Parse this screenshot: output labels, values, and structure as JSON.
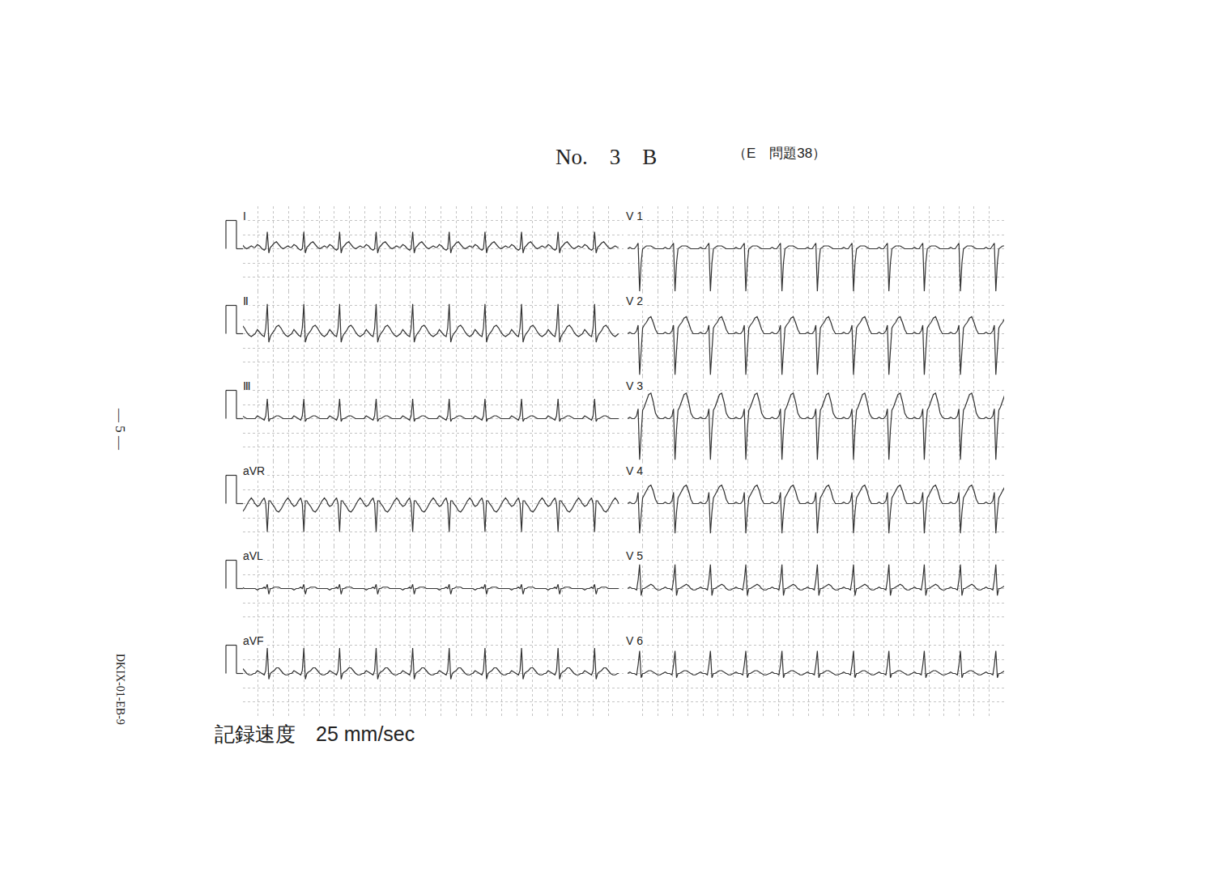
{
  "page": {
    "header": "No.　3　B",
    "exam_ref": "（E　問題38）",
    "page_number": "— 5 —",
    "code": "DKIX-01-EB-9",
    "recording_speed": "記録速度　25 mm/sec"
  },
  "chart_data": {
    "type": "line",
    "color": "#333333",
    "grid": true,
    "tick_labels": false,
    "xlim": [
      0,
      5
    ],
    "xticks": [
      0,
      0.2,
      0.4,
      0.6,
      0.8,
      1,
      1.2,
      1.4,
      1.6,
      1.8,
      2,
      2.2,
      2.4,
      2.6,
      2.8,
      3,
      3.2,
      3.4,
      3.6,
      3.8,
      4,
      4.2,
      4.4,
      4.6,
      4.8,
      5
    ],
    "ylim": [
      -1.5,
      1.5
    ],
    "yticks": [
      -1.5,
      -1,
      -0.5,
      0,
      0.5,
      1,
      1.5
    ],
    "beat_template_t": [
      -0.16,
      -0.13,
      -0.1,
      -0.07,
      -0.04,
      -0.02,
      0,
      0.02,
      0.04,
      0.06,
      0.09,
      0.12,
      0.15,
      0.18,
      0.21,
      0.24,
      0.27,
      0.3,
      0.315
    ],
    "columns": [
      {
        "calibration_mV": 1,
        "beat_times": [
          -0.16,
          0.32,
          0.8,
          1.27,
          1.75,
          2.23,
          2.71,
          3.18,
          3.66,
          4.14,
          4.62
        ],
        "leads": [
          {
            "name": "I",
            "values": [
              0.05,
              0.15,
              0.1,
              0,
              -0.05,
              0,
              0.6,
              -0.15,
              0.05,
              0.1,
              0.2,
              0.25,
              0.15,
              0.05,
              0,
              0.05,
              0.1,
              0.05,
              0.05
            ]
          },
          {
            "name": "Ⅱ",
            "values": [
              0,
              0.15,
              0.05,
              -0.05,
              -0.1,
              0.2,
              1.05,
              -0.3,
              -0.1,
              0,
              0.1,
              0.25,
              0.3,
              0.2,
              0.05,
              -0.05,
              -0.1,
              -0.05,
              0
            ]
          },
          {
            "name": "Ⅲ",
            "values": [
              0,
              0.1,
              0.05,
              0,
              -0.05,
              0.1,
              0.7,
              -0.1,
              0,
              0,
              0.05,
              0.1,
              0.1,
              0.05,
              0,
              0,
              0,
              0,
              0
            ]
          },
          {
            "name": "aVR",
            "values": [
              0,
              -0.1,
              -0.05,
              0.1,
              0.2,
              0,
              -1.0,
              0.1,
              0.1,
              0,
              -0.1,
              -0.25,
              -0.3,
              -0.2,
              -0.05,
              0.1,
              0.2,
              0.1,
              0
            ]
          },
          {
            "name": "aVL",
            "values": [
              0,
              -0.05,
              0,
              0,
              0.05,
              0,
              0.15,
              -0.2,
              0,
              0,
              0.05,
              0.05,
              0.05,
              0,
              0,
              0,
              0,
              0,
              0
            ]
          },
          {
            "name": "aVF",
            "values": [
              0,
              0.1,
              0.05,
              0,
              -0.05,
              0.1,
              0.9,
              -0.2,
              0,
              0.05,
              0.1,
              0.2,
              0.2,
              0.1,
              0,
              -0.05,
              -0.05,
              0,
              0
            ]
          }
        ]
      },
      {
        "beat_times": [
          0.16,
          0.63,
          1.1,
          1.57,
          2.05,
          2.52,
          3.0,
          3.47,
          3.94,
          4.42,
          4.89
        ],
        "leads": [
          {
            "name": "V 1",
            "values": [
              0,
              0.05,
              0,
              0,
              0.1,
              0.2,
              -1.5,
              -0.5,
              0,
              0.05,
              0.1,
              0.1,
              0.1,
              0.05,
              0,
              0,
              0,
              0,
              0
            ]
          },
          {
            "name": "V 2",
            "values": [
              0,
              0.05,
              0,
              0,
              0.1,
              0.3,
              -1.45,
              -0.6,
              0.2,
              0.3,
              0.4,
              0.55,
              0.6,
              0.4,
              0.15,
              0,
              0,
              0,
              0
            ]
          },
          {
            "name": "V 3",
            "values": [
              0,
              0.05,
              0,
              0,
              0.1,
              0.35,
              -1.45,
              -0.4,
              0.3,
              0.4,
              0.6,
              0.85,
              0.9,
              0.6,
              0.2,
              0.05,
              0,
              0,
              0
            ]
          },
          {
            "name": "V 4",
            "values": [
              0,
              0.05,
              0,
              0,
              0.1,
              0.4,
              -1.05,
              -0.3,
              0.2,
              0.3,
              0.45,
              0.6,
              0.65,
              0.45,
              0.15,
              0,
              0,
              0,
              0
            ]
          },
          {
            "name": "V 5",
            "values": [
              0,
              0.05,
              0,
              0,
              -0.05,
              0.3,
              0.85,
              -0.25,
              0,
              0,
              0.05,
              0.1,
              0.15,
              0.1,
              0,
              -0.05,
              -0.05,
              0,
              0
            ]
          },
          {
            "name": "V 6",
            "values": [
              0,
              0.05,
              0,
              0,
              -0.05,
              0.3,
              0.8,
              -0.15,
              0,
              0,
              0.05,
              0.1,
              0.1,
              0.05,
              0,
              -0.05,
              -0.05,
              0,
              0
            ]
          }
        ]
      }
    ]
  }
}
